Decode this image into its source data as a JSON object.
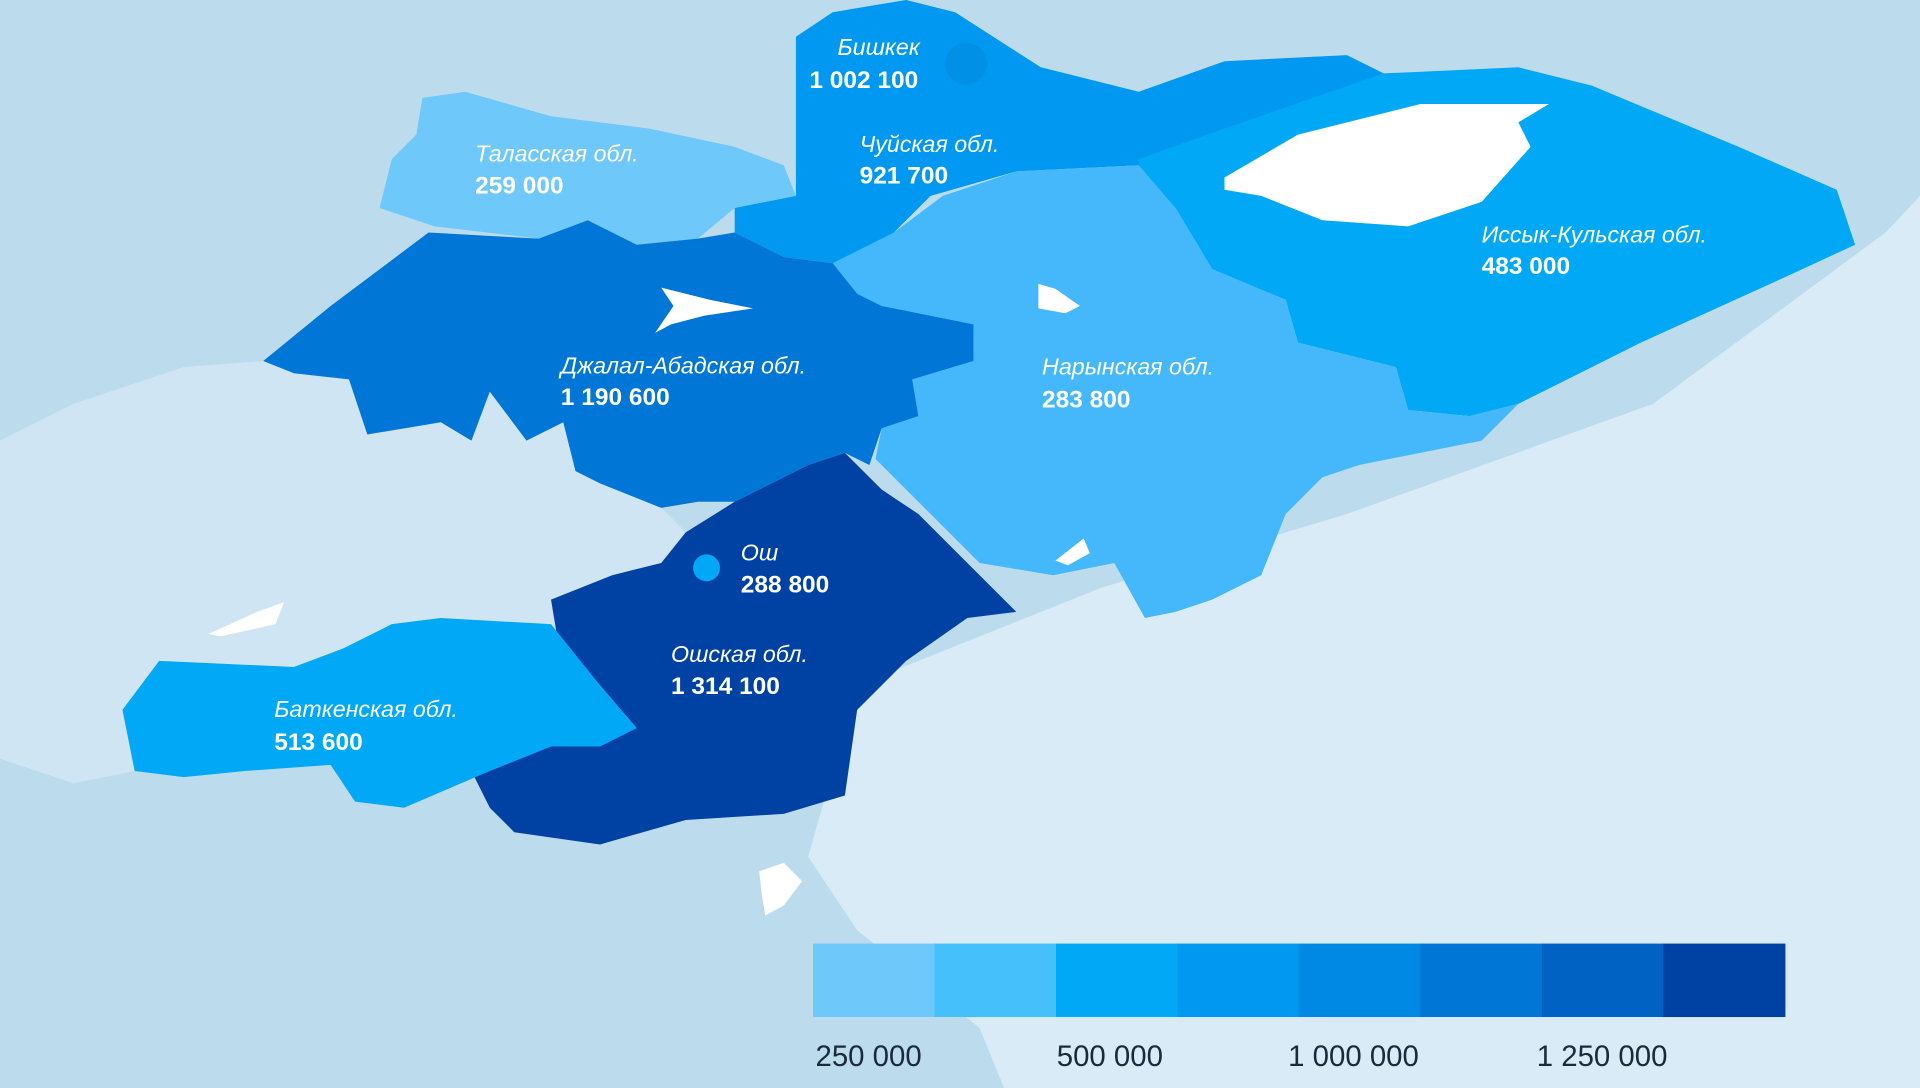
{
  "colors": {
    "background_neighbors": "#bcdcee",
    "background_lower": "#d8ebf7",
    "lake": "#ffffff",
    "scale": [
      "#6ec8fa",
      "#45c0fb",
      "#00a8f5",
      "#0098f0",
      "#0088e5",
      "#0076d6",
      "#0062c2",
      "#0042a4"
    ]
  },
  "regions": [
    {
      "name": "Бишкек",
      "value": "1 002 100",
      "color": "#0098f0"
    },
    {
      "name": "Чуйская обл.",
      "value": "921 700",
      "color": "#0098f0"
    },
    {
      "name": "Таласская обл.",
      "value": "259 000",
      "color": "#6ec8fa"
    },
    {
      "name": "Иссык-Кульская обл.",
      "value": "483 000",
      "color": "#00a8f5"
    },
    {
      "name": "Джалал-Абадская обл.",
      "value": "1 190 600",
      "color": "#0076d6"
    },
    {
      "name": "Нарынская обл.",
      "value": "283 800",
      "color": "#45b8fb"
    },
    {
      "name": "Ош",
      "value": "288 800",
      "color": "#00a8f5"
    },
    {
      "name": "Ошская обл.",
      "value": "1 314 100",
      "color": "#0042a4"
    },
    {
      "name": "Баткенская обл.",
      "value": "513 600",
      "color": "#00a8f5"
    }
  ],
  "legend": {
    "labels": [
      "250 000",
      "500 000",
      "1 000 000",
      "1 250 000"
    ]
  }
}
